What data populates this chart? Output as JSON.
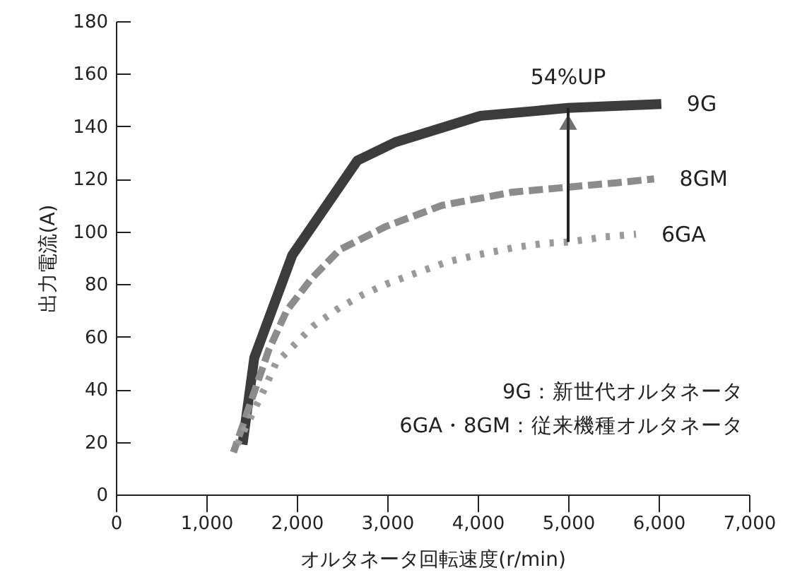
{
  "chart_data": {
    "type": "line",
    "xlabel": "オルタネータ回転速度(r/min)",
    "ylabel": "出力電流(A)",
    "xlim": [
      0,
      7000
    ],
    "xticks": [
      {
        "value": 0,
        "label": "0"
      },
      {
        "value": 1000,
        "label": "1,000"
      },
      {
        "value": 2000,
        "label": "2,000"
      },
      {
        "value": 3000,
        "label": "3,000"
      },
      {
        "value": 4000,
        "label": "4,000"
      },
      {
        "value": 5000,
        "label": "5,000"
      },
      {
        "value": 6000,
        "label": "6,000"
      },
      {
        "value": 7000,
        "label": "7,000"
      }
    ],
    "ylim": [
      0,
      180
    ],
    "yticks": [
      0,
      20,
      40,
      60,
      80,
      100,
      120,
      140,
      160,
      180
    ],
    "grid": false,
    "marker": "none",
    "annotations": [
      {
        "text": "54%UP",
        "x": 5000,
        "y": 147
      },
      "9G：新世代オルタネータ",
      "6GA・8GM：従来機種オルタネータ"
    ],
    "series": [
      {
        "name": "9G",
        "color": "#3c3c3c",
        "line_style": "solid",
        "x": [
          1400,
          1530,
          1950,
          2670,
          3090,
          4030,
          5000,
          6030
        ],
        "values": [
          19,
          52,
          91,
          127,
          134,
          144,
          147,
          148.5
        ]
      },
      {
        "name": "8GM",
        "color": "#8c8c8c",
        "line_style": "dashed",
        "x": [
          1300,
          1480,
          1690,
          1890,
          2160,
          2470,
          2990,
          3610,
          4390,
          5520,
          5950
        ],
        "values": [
          16,
          34,
          55,
          70,
          82,
          93,
          102,
          110,
          115,
          118.5,
          120
        ]
      },
      {
        "name": "6GA",
        "color": "#9a9a9a",
        "line_style": "dotted",
        "x": [
          1300,
          1640,
          1770,
          2180,
          2470,
          2730,
          2990,
          3300,
          3670,
          3980,
          4420,
          4760,
          5000,
          5410,
          5750
        ],
        "values": [
          16,
          40,
          50,
          64,
          71,
          76,
          80,
          84,
          88.5,
          91,
          94,
          95.6,
          96,
          98,
          99
        ]
      }
    ]
  }
}
